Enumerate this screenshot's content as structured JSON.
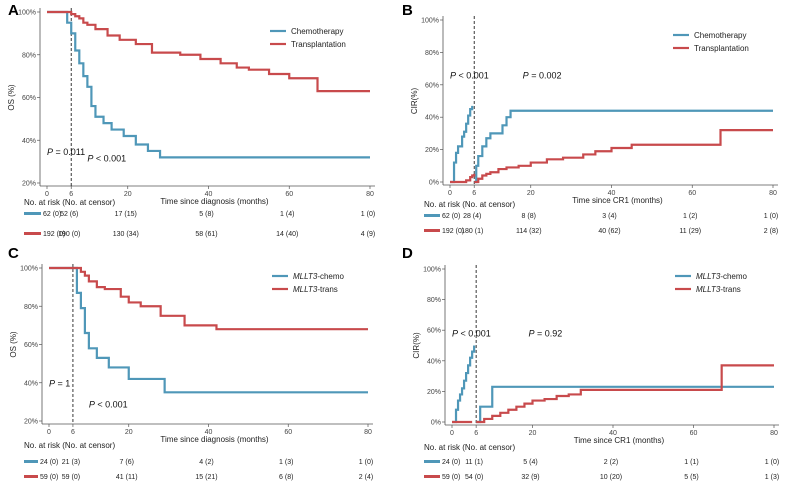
{
  "risk_title": "No. at risk (No. at censor)",
  "colors": {
    "Chemotherapy": "#4f97b8",
    "Transplantation": "#c84a4c",
    "MLLT3-chemo": "#4f97b8",
    "MLLT3-trans": "#c84a4c"
  },
  "chart_data": [
    {
      "panel": "A",
      "type": "line",
      "ylabel": "OS (%)",
      "xlabel": "Time since diagnosis (months)",
      "xlim": [
        0,
        80
      ],
      "ylim": [
        20,
        100
      ],
      "xticks": [
        "0",
        "6",
        "20",
        "40",
        "60",
        "80"
      ],
      "yticks": [
        "20%",
        "40%",
        "60%",
        "80%",
        "100%"
      ],
      "ref_line_x": 6,
      "annotations": [
        {
          "text": "P = 0.011",
          "x": 0,
          "y": 33
        },
        {
          "text": "P < 0.001",
          "x": 10,
          "y": 30
        }
      ],
      "series": [
        {
          "name": "Chemotherapy",
          "x": [
            0,
            4,
            5,
            6,
            7,
            8,
            9,
            10,
            11,
            12,
            14,
            16,
            19,
            22,
            25,
            28,
            80
          ],
          "y": [
            100,
            100,
            95,
            90,
            82,
            76,
            70,
            65,
            56,
            51,
            48,
            45,
            42,
            38,
            35,
            32,
            32
          ]
        },
        {
          "name": "Transplantation",
          "x": [
            0,
            5,
            6,
            7,
            8,
            9,
            10,
            12,
            15,
            18,
            22,
            26,
            33,
            38,
            43,
            47,
            50,
            55,
            60,
            66,
            67,
            80
          ],
          "y": [
            100,
            100,
            99,
            98,
            97,
            95,
            94,
            92,
            89,
            87,
            85,
            81,
            80,
            78,
            76,
            74,
            73,
            71,
            69,
            69,
            63,
            63
          ]
        }
      ],
      "risk_x": [
        0,
        6,
        20,
        40,
        60,
        80
      ],
      "risk_rows": [
        {
          "name": "Chemotherapy",
          "values": [
            "62 (0)",
            "52 (6)",
            "17 (15)",
            "5 (8)",
            "1 (4)",
            "1 (0)"
          ]
        },
        {
          "name": "Transplantation",
          "values": [
            "192 (0)",
            "190 (0)",
            "130 (34)",
            "58 (61)",
            "14 (40)",
            "4 (9)"
          ]
        }
      ]
    },
    {
      "panel": "B",
      "type": "line",
      "ylabel": "CIR(%)",
      "xlabel": "Time since CR1 (months)",
      "xlim": [
        0,
        80
      ],
      "ylim": [
        0,
        100
      ],
      "xticks": [
        "0",
        "6",
        "20",
        "40",
        "60",
        "80"
      ],
      "yticks": [
        "0%",
        "20%",
        "40%",
        "60%",
        "80%",
        "100%"
      ],
      "ref_line_x": 6,
      "annotations": [
        {
          "text": "P < 0.001",
          "x": 0,
          "y": 64
        },
        {
          "text": "P = 0.002",
          "x": 18,
          "y": 64
        }
      ],
      "series": [
        {
          "name": "Chemotherapy",
          "segments": [
            {
              "x": [
                0,
                1,
                1.5,
                2,
                3,
                3.5,
                4,
                4.5,
                5,
                5.5
              ],
              "y": [
                0,
                12,
                18,
                22,
                28,
                31,
                36,
                41,
                45,
                47
              ]
            },
            {
              "x": [
                6,
                6.5,
                7,
                8,
                9,
                10,
                12,
                13,
                14,
                15,
                80
              ],
              "y": [
                0,
                10,
                16,
                22,
                27,
                30,
                30,
                35,
                40,
                44,
                44
              ]
            }
          ]
        },
        {
          "name": "Transplantation",
          "segments": [
            {
              "x": [
                0,
                4,
                5,
                5.5,
                6
              ],
              "y": [
                0,
                1,
                3,
                4,
                5
              ]
            },
            {
              "x": [
                6,
                7,
                8,
                9,
                10,
                12,
                14,
                17,
                20,
                24,
                28,
                33,
                36,
                40,
                45,
                50,
                67,
                80
              ],
              "y": [
                0,
                2,
                4,
                5,
                6,
                8,
                9,
                10,
                12,
                14,
                15,
                17,
                19,
                21,
                23,
                23,
                32,
                32
              ]
            }
          ]
        }
      ],
      "risk_x": [
        0,
        6,
        20,
        40,
        60,
        80
      ],
      "risk_rows": [
        {
          "name": "Chemotherapy",
          "values": [
            "62 (0)",
            "28 (4)",
            "8 (8)",
            "3 (4)",
            "1 (2)",
            "1 (0)"
          ]
        },
        {
          "name": "Transplantation",
          "values": [
            "192 (0)",
            "180 (1)",
            "114 (32)",
            "40 (62)",
            "11 (29)",
            "2 (8)"
          ]
        }
      ]
    },
    {
      "panel": "C",
      "type": "line",
      "ylabel": "OS (%)",
      "xlabel": "Time since diagnosis (months)",
      "xlim": [
        0,
        80
      ],
      "ylim": [
        20,
        100
      ],
      "xticks": [
        "0",
        "6",
        "20",
        "40",
        "60",
        "80"
      ],
      "yticks": [
        "20%",
        "40%",
        "60%",
        "80%",
        "100%"
      ],
      "ref_line_x": 6,
      "annotations": [
        {
          "text": "P = 1",
          "x": 0,
          "y": 38
        },
        {
          "text": "P < 0.001",
          "x": 10,
          "y": 27
        }
      ],
      "series": [
        {
          "name": "MLLT3-chemo",
          "x": [
            0,
            6,
            7,
            8,
            9,
            10,
            12,
            15,
            20,
            29,
            80
          ],
          "y": [
            100,
            100,
            87,
            79,
            66,
            58,
            53,
            48,
            42,
            35,
            35
          ]
        },
        {
          "name": "MLLT3-trans",
          "x": [
            0,
            7,
            8,
            9,
            10,
            12,
            14,
            18,
            20,
            23,
            28,
            34,
            42,
            80
          ],
          "y": [
            100,
            100,
            98,
            96,
            93,
            90,
            89,
            85,
            82,
            80,
            75,
            70,
            68,
            68
          ]
        }
      ],
      "risk_x": [
        0,
        6,
        20,
        40,
        60,
        80
      ],
      "risk_rows": [
        {
          "name": "MLLT3-chemo",
          "values": [
            "24 (0)",
            "21 (3)",
            "7 (6)",
            "4 (2)",
            "1 (3)",
            "1 (0)"
          ]
        },
        {
          "name": "MLLT3-trans",
          "values": [
            "59 (0)",
            "59 (0)",
            "41 (11)",
            "15 (21)",
            "6 (8)",
            "2 (4)"
          ]
        }
      ]
    },
    {
      "panel": "D",
      "type": "line",
      "ylabel": "CIR(%)",
      "xlabel": "Time since CR1 (months)",
      "xlim": [
        0,
        80
      ],
      "ylim": [
        0,
        100
      ],
      "xticks": [
        "0",
        "6",
        "20",
        "40",
        "60",
        "80"
      ],
      "yticks": [
        "0%",
        "20%",
        "40%",
        "60%",
        "80%",
        "100%"
      ],
      "ref_line_x": 6,
      "annotations": [
        {
          "text": "P < 0.001",
          "x": 0,
          "y": 56
        },
        {
          "text": "P = 0.92",
          "x": 19,
          "y": 56
        }
      ],
      "series": [
        {
          "name": "MLLT3-chemo",
          "segments": [
            {
              "x": [
                0,
                1,
                1.5,
                2,
                2.5,
                3,
                3.5,
                4,
                4.5,
                5,
                5.5
              ],
              "y": [
                0,
                8,
                14,
                18,
                22,
                27,
                32,
                37,
                42,
                46,
                50
              ]
            },
            {
              "x": [
                6,
                7,
                8,
                9,
                10,
                80
              ],
              "y": [
                0,
                10,
                10,
                10,
                23,
                23
              ]
            }
          ]
        },
        {
          "name": "MLLT3-trans",
          "segments": [
            {
              "x": [
                0,
                5
              ],
              "y": [
                0,
                0
              ]
            },
            {
              "x": [
                6,
                8,
                10,
                12,
                14,
                16,
                18,
                20,
                23,
                26,
                29,
                32,
                67,
                80
              ],
              "y": [
                0,
                2,
                4,
                6,
                8,
                10,
                12,
                14,
                15,
                17,
                18,
                21,
                37,
                37
              ]
            }
          ]
        }
      ],
      "risk_x": [
        0,
        6,
        20,
        40,
        60,
        80
      ],
      "risk_rows": [
        {
          "name": "MLLT3-chemo",
          "values": [
            "24 (0)",
            "11 (1)",
            "5 (4)",
            "2 (2)",
            "1 (1)",
            "1 (0)"
          ]
        },
        {
          "name": "MLLT3-trans",
          "values": [
            "59 (0)",
            "54 (0)",
            "32 (9)",
            "10 (20)",
            "5 (5)",
            "1 (3)"
          ]
        }
      ]
    }
  ]
}
